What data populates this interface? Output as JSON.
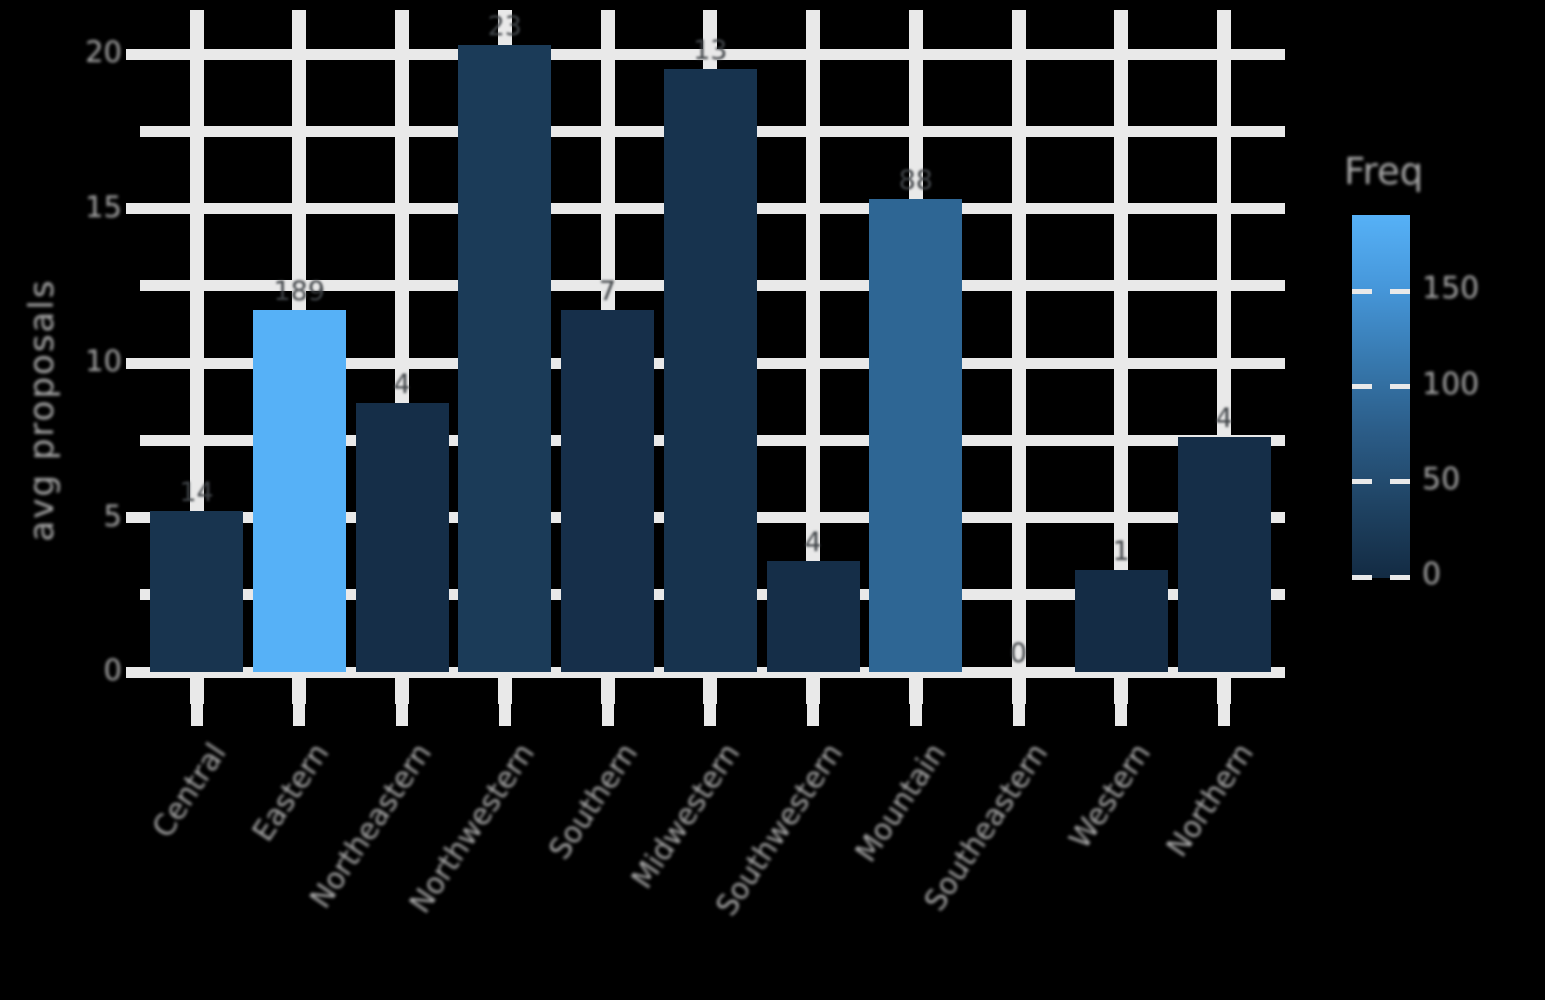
{
  "figure": {
    "background": "#000000",
    "grid_color": "#E9E9E9",
    "axis_text_color": "#B3B3B3",
    "bar_label_color": "#3F4347"
  },
  "chart_data": {
    "type": "bar",
    "title": "",
    "xlabel": "",
    "ylabel": "avg proposals",
    "categories": [
      "Central",
      "Eastern",
      "Northeastern",
      "Northwestern",
      "Southern",
      "Midwestern",
      "Southwestern",
      "Mountain",
      "Southeastern",
      "Western",
      "Northern"
    ],
    "values": [
      5.2,
      11.7,
      8.7,
      20.3,
      11.7,
      19.5,
      3.6,
      15.3,
      0,
      3.3,
      7.6
    ],
    "bar_labels": [
      "14",
      "189",
      "4",
      "23",
      "7",
      "13",
      "4",
      "88",
      "0",
      "1",
      "4"
    ],
    "bar_freqs": [
      14,
      189,
      4,
      23,
      7,
      13,
      4,
      88,
      0,
      1,
      4
    ],
    "bar_colors": [
      "#18344F",
      "#56B1F7",
      "#152E48",
      "#1B3B58",
      "#162F4A",
      "#17334E",
      "#152E48",
      "#2E6694",
      "#132B43",
      "#142C45",
      "#152E48"
    ],
    "ylim": [
      0,
      21.3
    ],
    "y_ticks": [
      "20",
      "15",
      "10",
      "5",
      "0"
    ],
    "y_tick_values": [
      20,
      15,
      10,
      5,
      0
    ],
    "y_minor_tick_values": [
      17.5,
      12.5,
      7.5,
      2.5
    ],
    "grid": "on",
    "legend": {
      "title": "Freq",
      "position": "right",
      "style": "colorbar",
      "range": [
        0,
        189
      ],
      "ticks": [
        "150",
        "100",
        "50",
        "0"
      ],
      "tick_values": [
        150,
        100,
        50,
        0
      ],
      "color_low": "#132B43",
      "color_high": "#56B1F7",
      "gradient_stops": [
        "#56B1F7",
        "#4697DA",
        "#3779AF",
        "#2B5C87",
        "#1F4363",
        "#132B43"
      ]
    }
  }
}
